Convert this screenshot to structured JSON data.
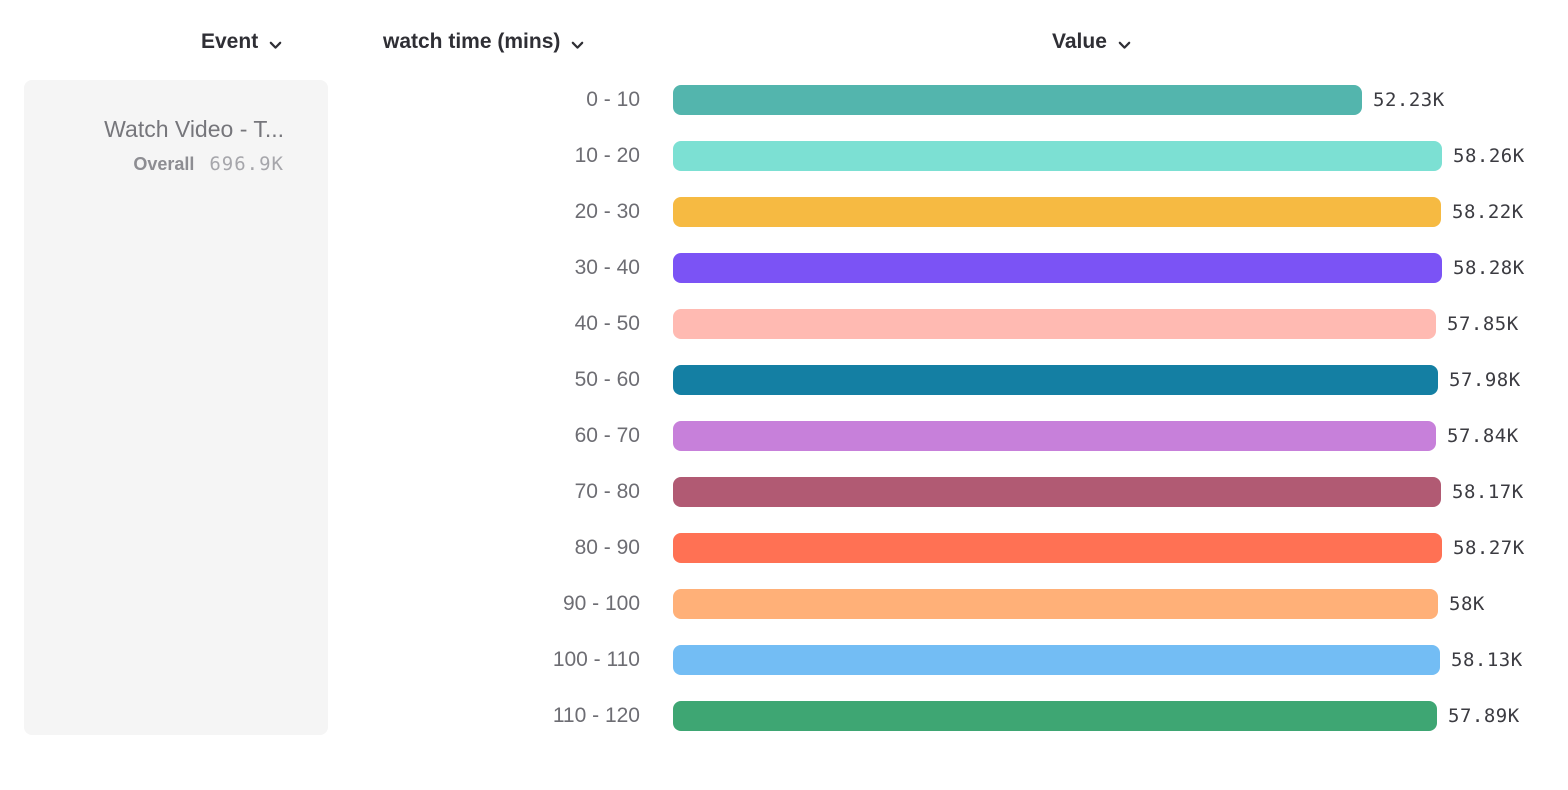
{
  "header": {
    "columns": [
      {
        "label": "Event"
      },
      {
        "label": "watch time (mins)"
      },
      {
        "label": "Value"
      }
    ]
  },
  "legend": {
    "event_name": "Watch Video - T...",
    "overall_label": "Overall",
    "overall_value": "696.9K"
  },
  "chart_data": {
    "type": "bar",
    "orientation": "horizontal",
    "title": "",
    "breakdown_property": "watch time (mins)",
    "categories": [
      "0 - 10",
      "10 - 20",
      "20 - 30",
      "30 - 40",
      "40 - 50",
      "50 - 60",
      "60 - 70",
      "70 - 80",
      "80 - 90",
      "90 - 100",
      "100 - 110",
      "110 - 120"
    ],
    "values": [
      52230,
      58260,
      58220,
      58280,
      57850,
      57980,
      57840,
      58170,
      58270,
      58000,
      58130,
      57890
    ],
    "value_labels": [
      "52.23K",
      "58.26K",
      "58.22K",
      "58.28K",
      "57.85K",
      "57.98K",
      "57.84K",
      "58.17K",
      "58.27K",
      "58K",
      "58.13K",
      "57.89K"
    ],
    "bar_colors": [
      "#53b5ad",
      "#7ce0d3",
      "#f6ba42",
      "#7b53f5",
      "#ffbab2",
      "#147fa3",
      "#c780da",
      "#b15a73",
      "#ff7154",
      "#ffb078",
      "#73bdf4",
      "#3ea673"
    ],
    "xlim": [
      0,
      58280
    ],
    "grid": false,
    "legend_position": "left"
  },
  "colors": {
    "card_bg": "#f5f5f5",
    "header_text": "#2f2f35",
    "bucket_label_text": "#6d6d73",
    "value_text": "#3b3b41"
  }
}
